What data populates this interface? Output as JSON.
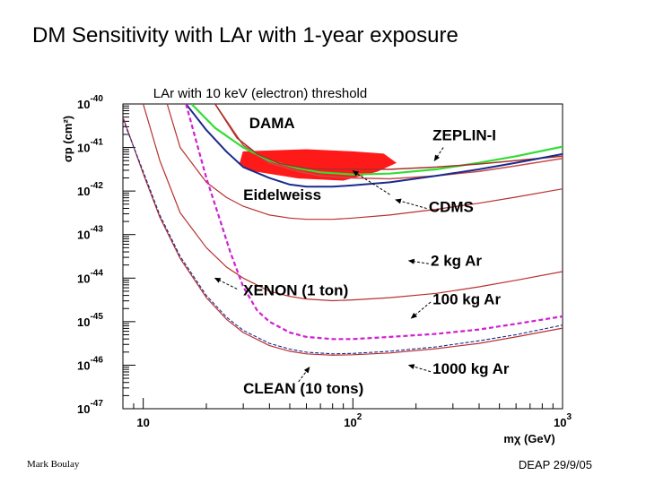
{
  "slide": {
    "title": "DM Sensitivity with LAr with 1-year exposure",
    "footer_left": "Mark Boulay",
    "footer_right": "DEAP 29/9/05"
  },
  "chart_data": {
    "type": "line",
    "title": "LAr with 10 keV (electron) threshold",
    "xlabel": "mχ (GeV)",
    "ylabel": "σp (cm²)",
    "xscale": "log",
    "yscale": "log",
    "xlim": [
      8,
      1000
    ],
    "ylim": [
      1e-47,
      1e-40
    ],
    "x_tick_labels": [
      {
        "value": 10,
        "base": "10",
        "exp": ""
      },
      {
        "value": 100,
        "base": "10",
        "exp": "2"
      },
      {
        "value": 1000,
        "base": "10",
        "exp": "3"
      }
    ],
    "y_tick_labels": [
      {
        "value": 1e-40,
        "base": "10",
        "exp": "-40"
      },
      {
        "value": 1e-41,
        "base": "10",
        "exp": "-41"
      },
      {
        "value": 1e-42,
        "base": "10",
        "exp": "-42"
      },
      {
        "value": 1e-43,
        "base": "10",
        "exp": "-43"
      },
      {
        "value": 1e-44,
        "base": "10",
        "exp": "-44"
      },
      {
        "value": 1e-45,
        "base": "10",
        "exp": "-45"
      },
      {
        "value": 1e-46,
        "base": "10",
        "exp": "-46"
      },
      {
        "value": 1e-47,
        "base": "10",
        "exp": "-47"
      }
    ],
    "series": [
      {
        "name": "ZEPLIN-I",
        "color": "#c94c4c",
        "width": 1.5,
        "dash": "",
        "x": [
          22,
          30,
          40,
          55,
          70,
          100,
          150,
          250,
          400,
          600,
          1000
        ],
        "y": [
          -40.0,
          -40.95,
          -41.35,
          -41.55,
          -41.65,
          -41.7,
          -41.72,
          -41.65,
          -41.55,
          -41.42,
          -41.25
        ]
      },
      {
        "name": "green limit",
        "color": "#33dd33",
        "width": 2.2,
        "dash": "",
        "x": [
          17,
          22,
          30,
          40,
          55,
          70,
          100,
          150,
          250,
          400,
          600,
          1000
        ],
        "y": [
          -40.0,
          -40.55,
          -41.0,
          -41.3,
          -41.48,
          -41.57,
          -41.62,
          -41.6,
          -41.5,
          -41.35,
          -41.2,
          -40.98
        ]
      },
      {
        "name": "Eidelweiss",
        "color": "#a8302a",
        "width": 1.5,
        "dash": "",
        "x": [
          22,
          28,
          35,
          45,
          60,
          80,
          100,
          150,
          250,
          400,
          600,
          1000
        ],
        "y": [
          -40.0,
          -40.78,
          -41.15,
          -41.37,
          -41.48,
          -41.5,
          -41.5,
          -41.5,
          -41.45,
          -41.38,
          -41.3,
          -41.2
        ]
      },
      {
        "name": "CDMS",
        "color": "#1a2a8c",
        "width": 2,
        "dash": "",
        "x": [
          16,
          20,
          25,
          30,
          40,
          50,
          60,
          80,
          100,
          150,
          250,
          400,
          600,
          1000
        ],
        "y": [
          -40.0,
          -40.6,
          -41.1,
          -41.45,
          -41.7,
          -41.85,
          -41.9,
          -41.9,
          -41.87,
          -41.8,
          -41.65,
          -41.5,
          -41.35,
          -41.15
        ]
      },
      {
        "name": "2 kg Ar",
        "color": "#b83030",
        "width": 1.2,
        "dash": "",
        "x": [
          13,
          15,
          20,
          25,
          30,
          40,
          50,
          60,
          80,
          100,
          150,
          250,
          400,
          600,
          1000
        ],
        "y": [
          -40.0,
          -41.0,
          -41.8,
          -42.15,
          -42.35,
          -42.55,
          -42.62,
          -42.65,
          -42.65,
          -42.62,
          -42.55,
          -42.42,
          -42.28,
          -42.14,
          -41.95
        ]
      },
      {
        "name": "100 kg Ar",
        "color": "#b83030",
        "width": 1.2,
        "dash": "",
        "x": [
          10,
          12,
          15,
          20,
          25,
          30,
          40,
          50,
          60,
          80,
          100,
          150,
          250,
          400,
          600,
          1000
        ],
        "y": [
          -40.0,
          -41.3,
          -42.5,
          -43.3,
          -43.75,
          -44.0,
          -44.3,
          -44.42,
          -44.48,
          -44.52,
          -44.5,
          -44.45,
          -44.35,
          -44.2,
          -44.05,
          -43.85
        ]
      },
      {
        "name": "1000 kg Ar",
        "color": "#b83030",
        "width": 1.2,
        "dash": "",
        "x": [
          8,
          10,
          12,
          15,
          20,
          25,
          30,
          40,
          50,
          60,
          80,
          100,
          150,
          250,
          400,
          600,
          1000
        ],
        "y": [
          -40.3,
          -41.6,
          -42.6,
          -43.55,
          -44.45,
          -44.95,
          -45.25,
          -45.55,
          -45.68,
          -45.74,
          -45.77,
          -45.76,
          -45.72,
          -45.62,
          -45.5,
          -45.35,
          -45.15
        ]
      },
      {
        "name": "XENON (1 ton)",
        "color": "#d020d0",
        "width": 2.2,
        "dash": "5,3",
        "x": [
          16,
          18,
          20,
          23,
          26,
          30,
          35,
          40,
          50,
          60,
          80,
          100,
          150,
          250,
          400,
          600,
          1000
        ],
        "y": [
          -40.0,
          -40.9,
          -41.7,
          -42.6,
          -43.4,
          -44.2,
          -44.75,
          -45.0,
          -45.25,
          -45.35,
          -45.4,
          -45.4,
          -45.35,
          -45.28,
          -45.18,
          -45.05,
          -44.88
        ]
      },
      {
        "name": "CLEAN (10 tons)",
        "color": "#1a2a8c",
        "width": 1.1,
        "dash": "4,2",
        "x": [
          8,
          10,
          12,
          15,
          20,
          25,
          30,
          40,
          50,
          60,
          80,
          100,
          150,
          250,
          400,
          600,
          1000
        ],
        "y": [
          -40.35,
          -41.55,
          -42.55,
          -43.5,
          -44.4,
          -44.9,
          -45.2,
          -45.5,
          -45.63,
          -45.7,
          -45.74,
          -45.73,
          -45.68,
          -45.58,
          -45.44,
          -45.3,
          -45.08
        ]
      }
    ],
    "region": {
      "name": "DAMA",
      "color": "#ff1a1a",
      "x": [
        30,
        60,
        100,
        140,
        160,
        130,
        90,
        55,
        32,
        29
      ],
      "y": [
        -41.1,
        -41.05,
        -41.1,
        -41.15,
        -41.35,
        -41.55,
        -41.75,
        -41.7,
        -41.52,
        -41.35
      ]
    },
    "annotations": [
      {
        "text": "DAMA",
        "label_x": 32,
        "label_y": -40.56,
        "arrow": false
      },
      {
        "text": "ZEPLIN-I",
        "label_x": 240,
        "label_y": -40.83,
        "arrow": true,
        "ax": 270,
        "ay": -41.0,
        "bx": 245,
        "by": -41.3
      },
      {
        "text": "Eidelweiss",
        "label_x": 30,
        "label_y": -42.2,
        "arrow": true,
        "ax": 150,
        "ay": -42.08,
        "bx": 100,
        "by": -41.54
      },
      {
        "text": "CDMS",
        "label_x": 230,
        "label_y": -42.48,
        "arrow": true,
        "ax": 225,
        "ay": -42.4,
        "bx": 160,
        "by": -42.2
      },
      {
        "text": "2 kg Ar",
        "label_x": 235,
        "label_y": -43.72,
        "arrow": true,
        "ax": 230,
        "ay": -43.67,
        "bx": 185,
        "by": -43.6
      },
      {
        "text": "XENON (1 ton)",
        "label_x": 30,
        "label_y": -44.4,
        "arrow": true,
        "ax": 28,
        "ay": -44.25,
        "bx": 22,
        "by": -44.0
      },
      {
        "text": "100 kg Ar",
        "label_x": 240,
        "label_y": -44.6,
        "arrow": true,
        "ax": 235,
        "ay": -44.55,
        "bx": 190,
        "by": -44.92
      },
      {
        "text": "1000 kg Ar",
        "label_x": 240,
        "label_y": -46.2,
        "arrow": true,
        "ax": 235,
        "ay": -46.15,
        "bx": 185,
        "by": -46.0
      },
      {
        "text": "CLEAN (10 tons)",
        "label_x": 30,
        "label_y": -46.65,
        "arrow": true,
        "ax": 55,
        "ay": -46.38,
        "bx": 62,
        "by": -46.05
      }
    ]
  }
}
